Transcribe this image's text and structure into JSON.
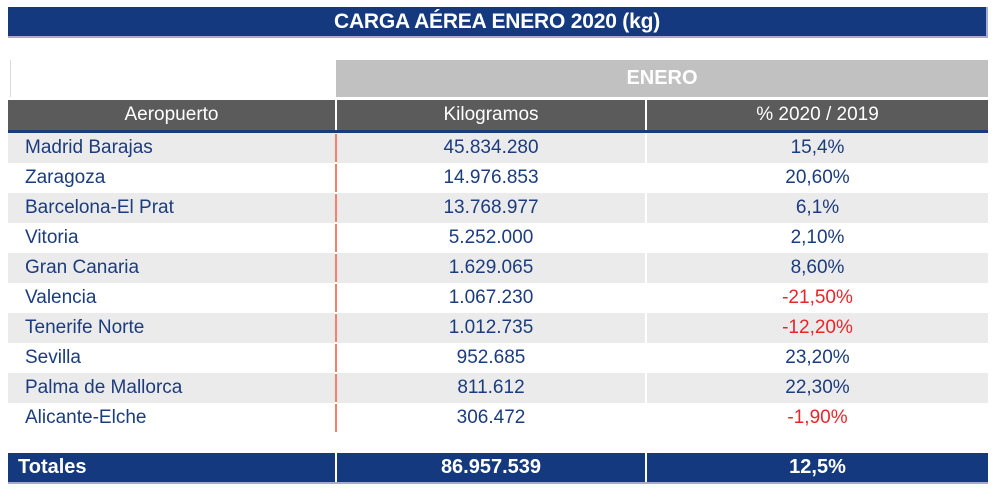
{
  "title": "CARGA AÉREA ENERO 2020 (kg)",
  "chart_data": {
    "type": "table",
    "title": "CARGA AÉREA ENERO 2020 (kg)",
    "group_header": "ENERO",
    "columns": [
      "Aeropuerto",
      "Kilogramos",
      "% 2020 / 2019"
    ],
    "rows": [
      {
        "airport": "Madrid Barajas",
        "kilograms": "45.834.280",
        "pct": "15,4%"
      },
      {
        "airport": "Zaragoza",
        "kilograms": "14.976.853",
        "pct": "20,60%"
      },
      {
        "airport": "Barcelona-El Prat",
        "kilograms": "13.768.977",
        "pct": "6,1%"
      },
      {
        "airport": "Vitoria",
        "kilograms": "5.252.000",
        "pct": "2,10%"
      },
      {
        "airport": "Gran Canaria",
        "kilograms": "1.629.065",
        "pct": "8,60%"
      },
      {
        "airport": "Valencia",
        "kilograms": "1.067.230",
        "pct": "-21,50%"
      },
      {
        "airport": "Tenerife Norte",
        "kilograms": "1.012.735",
        "pct": "-12,20%"
      },
      {
        "airport": "Sevilla",
        "kilograms": "952.685",
        "pct": "23,20%"
      },
      {
        "airport": "Palma de Mallorca",
        "kilograms": "811.612",
        "pct": "22,30%"
      },
      {
        "airport": "Alicante-Elche",
        "kilograms": "306.472",
        "pct": "-1,90%"
      }
    ],
    "totals": {
      "label": "Totales",
      "kilograms": "86.957.539",
      "pct": "12,5%"
    }
  },
  "colors": {
    "navy": "#15397F",
    "header_gray": "#5B5B5B",
    "band_gray": "#C1C1C1",
    "row_alt_gray": "#EBEBEB",
    "text_navy": "#1B3C7D",
    "negative_red": "#E8262A",
    "column_divider_red": "#F97E6C",
    "bar_edge_lavender": "#A9A9D3"
  }
}
